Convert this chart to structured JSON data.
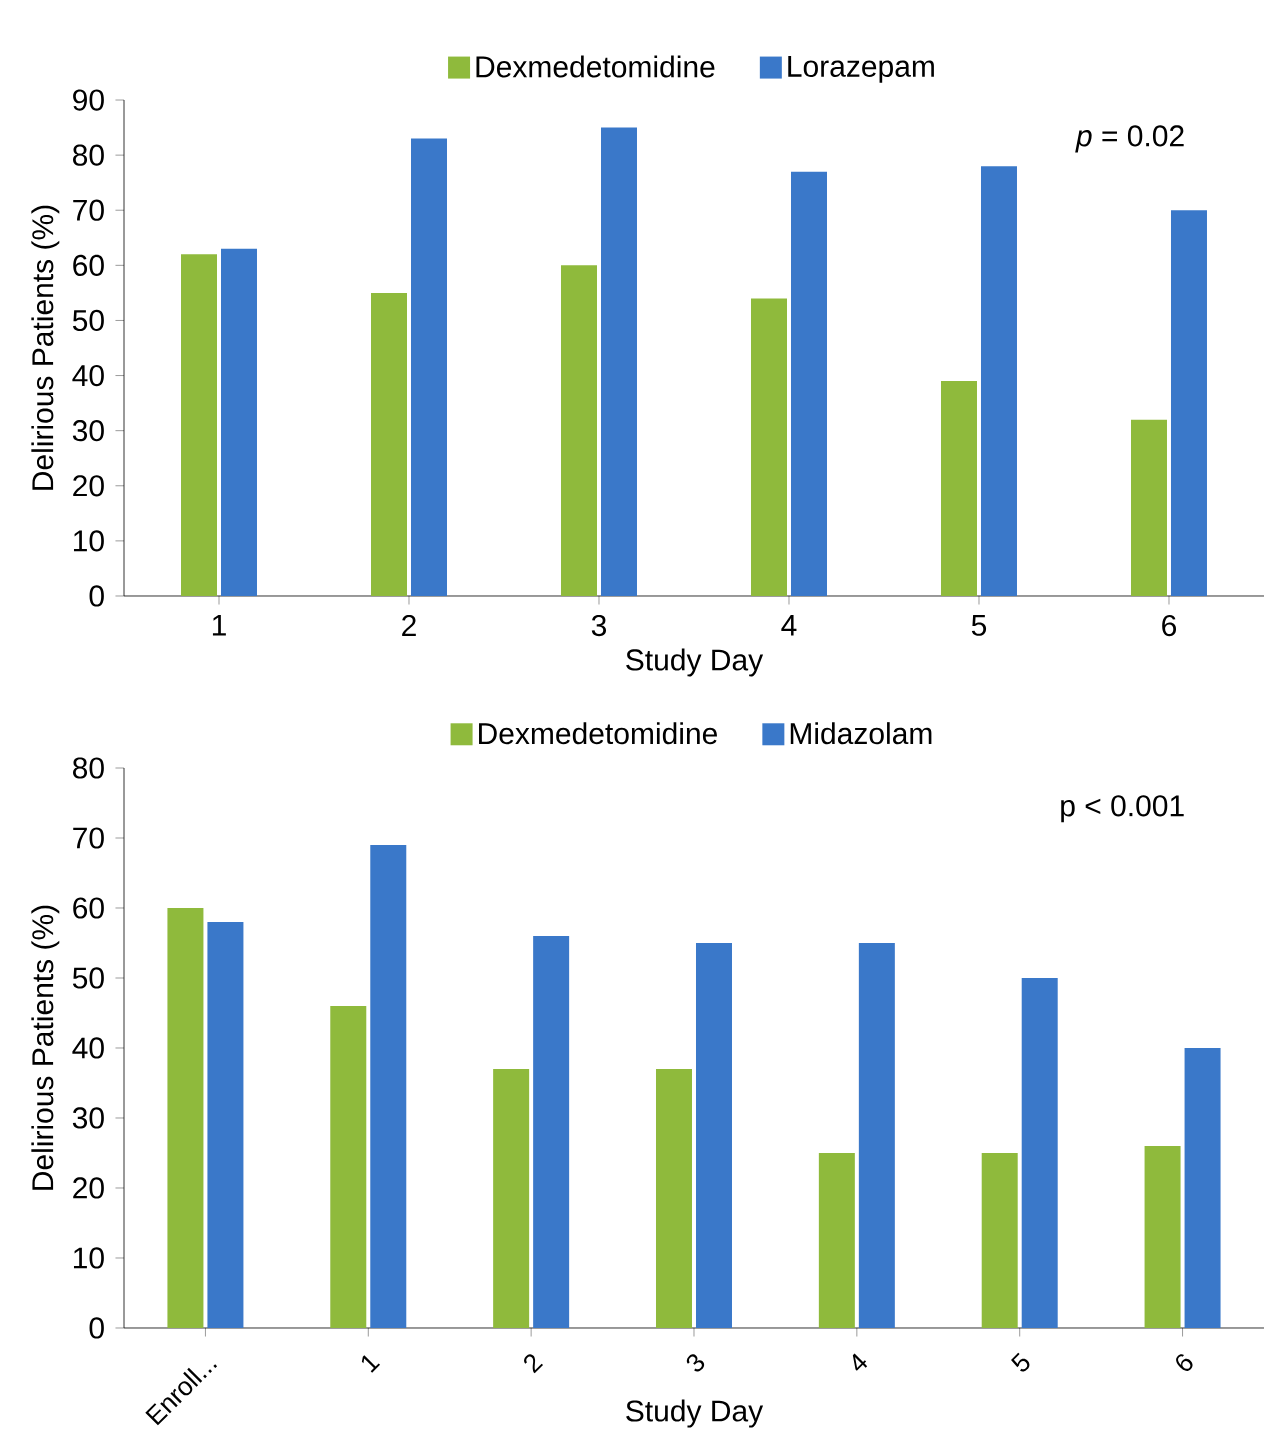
{
  "chart_data": [
    {
      "type": "bar",
      "xlabel": "Study Day",
      "ylabel": "Delirious Patients (%)",
      "categories": [
        "1",
        "2",
        "3",
        "4",
        "5",
        "6"
      ],
      "series": [
        {
          "name": "Dexmedetomidine",
          "color": "#8fba3c",
          "values": [
            62,
            55,
            60,
            54,
            39,
            32
          ]
        },
        {
          "name": "Lorazepam",
          "color": "#3a78c9",
          "values": [
            63,
            83,
            85,
            77,
            78,
            70
          ]
        }
      ],
      "ylim": [
        0,
        90
      ],
      "yticks": [
        0,
        10,
        20,
        30,
        40,
        50,
        60,
        70,
        80,
        90
      ],
      "legend": "top",
      "annotations": [
        "*p* = 0.02"
      ]
    },
    {
      "type": "bar",
      "xlabel": "Study Day",
      "ylabel": "Delirious Patients (%)",
      "categories": [
        "Enroll...",
        "1",
        "2",
        "3",
        "4",
        "5",
        "6"
      ],
      "series": [
        {
          "name": "Dexmedetomidine",
          "color": "#8fba3c",
          "values": [
            60,
            46,
            37,
            37,
            25,
            25,
            26
          ]
        },
        {
          "name": "Midazolam",
          "color": "#3a78c9",
          "values": [
            58,
            69,
            56,
            55,
            55,
            50,
            40
          ]
        }
      ],
      "ylim": [
        0,
        80
      ],
      "yticks": [
        0,
        10,
        20,
        30,
        40,
        50,
        60,
        70,
        80
      ],
      "legend": "top",
      "annotations": [
        "p < 0.001"
      ]
    }
  ]
}
